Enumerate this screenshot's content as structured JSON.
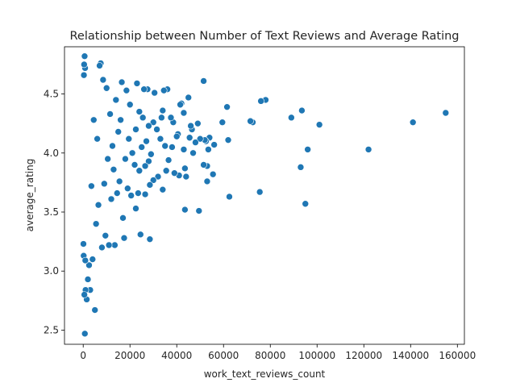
{
  "chart_data": {
    "type": "scatter",
    "title": "Relationship between Number of Text Reviews and Average Rating",
    "xlabel": "work_text_reviews_count",
    "ylabel": "average_rating",
    "xlim": [
      -8000,
      163000
    ],
    "ylim": [
      2.38,
      4.9
    ],
    "xticks": [
      0,
      20000,
      40000,
      60000,
      80000,
      100000,
      120000,
      140000,
      160000
    ],
    "xtick_labels": [
      "0",
      "20000",
      "40000",
      "60000",
      "80000",
      "100000",
      "120000",
      "140000",
      "160000"
    ],
    "yticks": [
      2.5,
      3.0,
      3.5,
      4.0,
      4.5
    ],
    "ytick_labels": [
      "2.5",
      "3.0",
      "3.5",
      "4.0",
      "4.5"
    ],
    "grid": false,
    "marker_color": "#1f77b4",
    "marker_edge_color": "#ffffff",
    "series": [
      {
        "points": [
          [
            155000,
            4.34
          ],
          [
            141000,
            4.26
          ],
          [
            122000,
            4.03
          ],
          [
            101000,
            4.24
          ],
          [
            96000,
            4.03
          ],
          [
            95000,
            3.57
          ],
          [
            93500,
            4.36
          ],
          [
            93000,
            3.88
          ],
          [
            89000,
            4.3
          ],
          [
            78000,
            4.45
          ],
          [
            76000,
            4.44
          ],
          [
            75500,
            3.67
          ],
          [
            72500,
            4.26
          ],
          [
            71500,
            4.27
          ],
          [
            62500,
            3.63
          ],
          [
            62000,
            4.11
          ],
          [
            61500,
            4.39
          ],
          [
            59500,
            4.26
          ],
          [
            56000,
            4.07
          ],
          [
            55500,
            3.82
          ],
          [
            54000,
            4.13
          ],
          [
            53500,
            4.03
          ],
          [
            53000,
            3.76
          ],
          [
            53000,
            3.89
          ],
          [
            52500,
            4.1
          ],
          [
            52000,
            4.11
          ],
          [
            51500,
            4.61
          ],
          [
            51500,
            3.9
          ],
          [
            50000,
            4.12
          ],
          [
            49500,
            3.51
          ],
          [
            49000,
            4.25
          ],
          [
            48000,
            4.09
          ],
          [
            47000,
            4.0
          ],
          [
            46500,
            4.2
          ],
          [
            46000,
            4.23
          ],
          [
            45500,
            4.13
          ],
          [
            45000,
            4.47
          ],
          [
            44000,
            3.8
          ],
          [
            43500,
            3.52
          ],
          [
            43500,
            3.87
          ],
          [
            43000,
            4.34
          ],
          [
            43000,
            4.03
          ],
          [
            42000,
            4.42
          ],
          [
            41500,
            4.41
          ],
          [
            41000,
            3.81
          ],
          [
            40500,
            4.16
          ],
          [
            40000,
            4.14
          ],
          [
            39000,
            3.83
          ],
          [
            38500,
            4.26
          ],
          [
            38000,
            4.05
          ],
          [
            37500,
            4.3
          ],
          [
            36500,
            3.94
          ],
          [
            36000,
            4.54
          ],
          [
            35500,
            3.85
          ],
          [
            35000,
            4.06
          ],
          [
            34500,
            4.53
          ],
          [
            34000,
            4.36
          ],
          [
            34000,
            3.69
          ],
          [
            33500,
            4.3
          ],
          [
            33000,
            4.12
          ],
          [
            32000,
            3.8
          ],
          [
            31500,
            4.2
          ],
          [
            30500,
            4.51
          ],
          [
            30000,
            4.26
          ],
          [
            30000,
            3.77
          ],
          [
            29000,
            3.99
          ],
          [
            28500,
            3.27
          ],
          [
            28500,
            3.73
          ],
          [
            28000,
            4.23
          ],
          [
            28000,
            3.93
          ],
          [
            27500,
            4.54
          ],
          [
            27000,
            4.1
          ],
          [
            26500,
            3.89
          ],
          [
            26500,
            3.65
          ],
          [
            26000,
            4.54
          ],
          [
            25500,
            4.3
          ],
          [
            25000,
            4.05
          ],
          [
            24500,
            3.31
          ],
          [
            24000,
            3.85
          ],
          [
            24000,
            4.35
          ],
          [
            23500,
            3.66
          ],
          [
            23000,
            4.59
          ],
          [
            22500,
            3.53
          ],
          [
            22500,
            4.2
          ],
          [
            22000,
            3.9
          ],
          [
            21000,
            4.0
          ],
          [
            20500,
            3.64
          ],
          [
            20000,
            4.41
          ],
          [
            19500,
            4.12
          ],
          [
            19000,
            3.7
          ],
          [
            18500,
            4.53
          ],
          [
            18000,
            3.95
          ],
          [
            17500,
            3.28
          ],
          [
            17000,
            3.45
          ],
          [
            16500,
            4.6
          ],
          [
            16000,
            4.28
          ],
          [
            15500,
            3.76
          ],
          [
            15000,
            4.18
          ],
          [
            14500,
            3.66
          ],
          [
            14000,
            4.45
          ],
          [
            13500,
            3.22
          ],
          [
            13000,
            3.86
          ],
          [
            12500,
            4.06
          ],
          [
            12000,
            3.61
          ],
          [
            11500,
            4.33
          ],
          [
            11000,
            3.22
          ],
          [
            10500,
            3.95
          ],
          [
            10000,
            4.55
          ],
          [
            9500,
            3.3
          ],
          [
            9000,
            3.74
          ],
          [
            8500,
            4.62
          ],
          [
            8000,
            3.2
          ],
          [
            7500,
            4.76
          ],
          [
            7000,
            4.74
          ],
          [
            6500,
            3.56
          ],
          [
            6000,
            4.12
          ],
          [
            5500,
            3.4
          ],
          [
            5000,
            2.67
          ],
          [
            4500,
            4.28
          ],
          [
            4000,
            3.1
          ],
          [
            3500,
            3.72
          ],
          [
            3000,
            2.84
          ],
          [
            2500,
            3.05
          ],
          [
            2000,
            2.93
          ],
          [
            1500,
            2.76
          ],
          [
            1000,
            2.84
          ],
          [
            700,
            2.47
          ],
          [
            500,
            2.8
          ],
          [
            600,
            4.82
          ],
          [
            800,
            4.72
          ],
          [
            400,
            4.75
          ],
          [
            300,
            4.66
          ],
          [
            200,
            3.13
          ],
          [
            100,
            3.23
          ],
          [
            900,
            3.09
          ]
        ]
      }
    ]
  }
}
